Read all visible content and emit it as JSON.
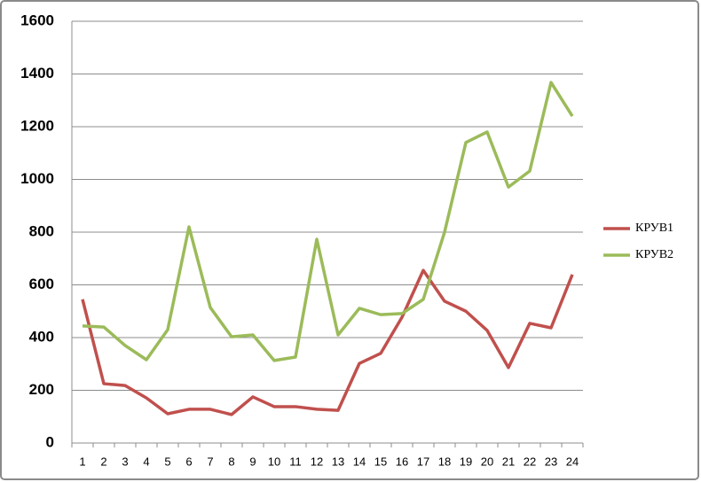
{
  "chart_data": {
    "type": "line",
    "categories": [
      "1",
      "2",
      "3",
      "4",
      "5",
      "6",
      "7",
      "8",
      "9",
      "10",
      "11",
      "12",
      "13",
      "14",
      "15",
      "16",
      "17",
      "18",
      "19",
      "20",
      "21",
      "22",
      "23",
      "24"
    ],
    "series": [
      {
        "name": "КРУВ1",
        "color": "#c0504d",
        "values": [
          545,
          225,
          218,
          171,
          111,
          128,
          128,
          108,
          175,
          138,
          138,
          128,
          124,
          302,
          340,
          477,
          655,
          538,
          500,
          427,
          286,
          454,
          437,
          639
        ]
      },
      {
        "name": "КРУВ2",
        "color": "#9bbb59",
        "values": [
          444,
          440,
          370,
          316,
          430,
          820,
          514,
          403,
          410,
          313,
          326,
          773,
          410,
          511,
          487,
          491,
          545,
          800,
          1140,
          1180,
          971,
          1032,
          1368,
          1240
        ]
      }
    ],
    "ylim": [
      0,
      1600
    ],
    "yticks": [
      0,
      200,
      400,
      600,
      800,
      1000,
      1200,
      1400,
      1600
    ],
    "grid": true,
    "legend": "right"
  }
}
